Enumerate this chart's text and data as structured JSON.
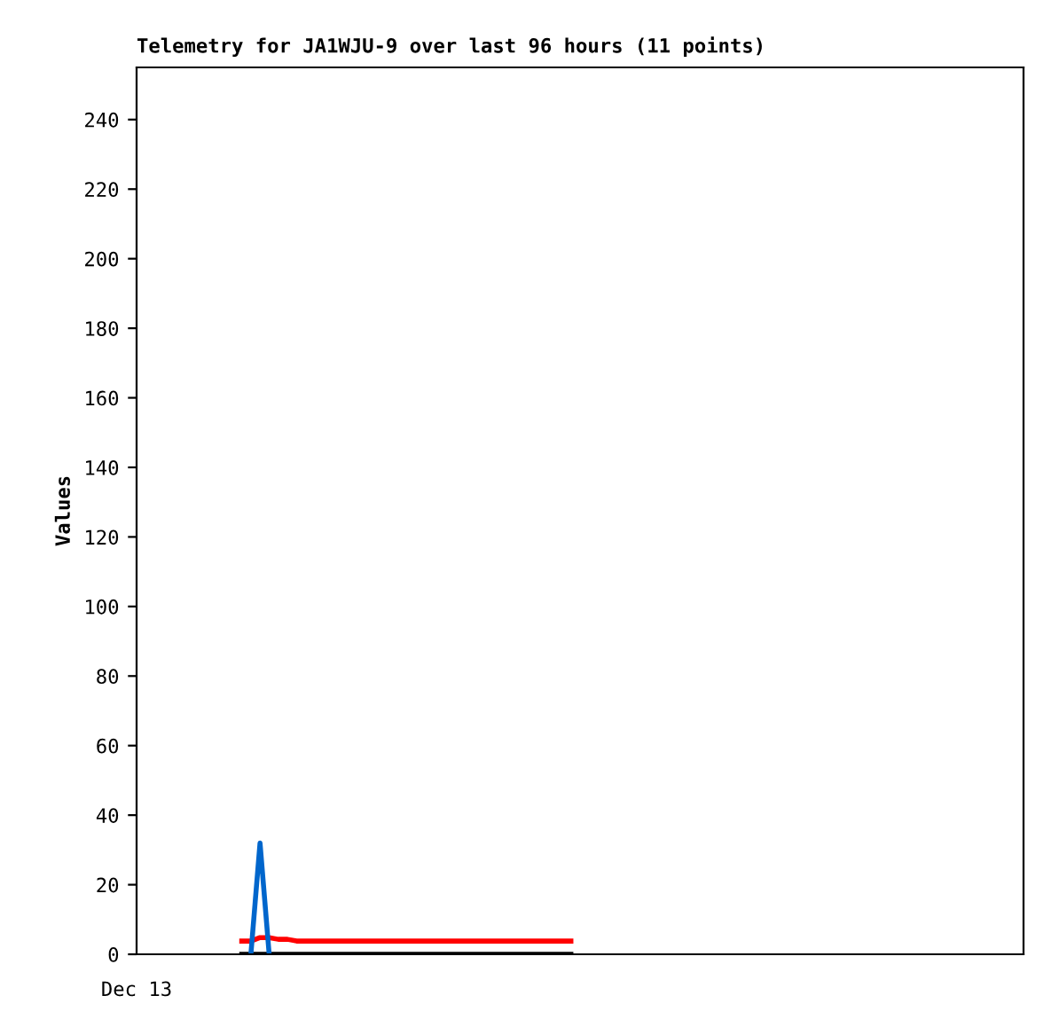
{
  "chart_data": {
    "type": "line",
    "title": "Telemetry for JA1WJU-9 over last 96 hours (11 points)",
    "ylabel": "Values",
    "categories": [
      null,
      null,
      null,
      null,
      null,
      null,
      null,
      null,
      null,
      null,
      null,
      null,
      null,
      null,
      null,
      null,
      null,
      null,
      null,
      null,
      null,
      null,
      null,
      null,
      null,
      null,
      null,
      null,
      null,
      null,
      null,
      null,
      null,
      null,
      null,
      null,
      null,
      null,
      null,
      null,
      null,
      null,
      null,
      null,
      null,
      null,
      null,
      null,
      null,
      null,
      null,
      null,
      null,
      null,
      null,
      null,
      null,
      null,
      null,
      null,
      null,
      null,
      null,
      null,
      null,
      null,
      null,
      null,
      null,
      null,
      null,
      null,
      null,
      null,
      null,
      null,
      null,
      null,
      null,
      null,
      null,
      null,
      null,
      null,
      null,
      null,
      null,
      null,
      null,
      null,
      null,
      null,
      null,
      null,
      null,
      null,
      null
    ],
    "series": [
      {
        "color": "#000000",
        "values": [
          null,
          null,
          null,
          null,
          null,
          null,
          null,
          null,
          null,
          null,
          null,
          0,
          0,
          0,
          0,
          0,
          0,
          0,
          0,
          0,
          0,
          0,
          0,
          0,
          0,
          0,
          0,
          0,
          0,
          0,
          0,
          0,
          0,
          0,
          0,
          0,
          0,
          0,
          0,
          0,
          0,
          0,
          0,
          0,
          0,
          0,
          0,
          0,
          null,
          null,
          null,
          null,
          null,
          null,
          null,
          null,
          null,
          null,
          null,
          null,
          null,
          null,
          null,
          null,
          null,
          null,
          null,
          null,
          null,
          null,
          null,
          null,
          null,
          null,
          null,
          null,
          null,
          null,
          null,
          null,
          null,
          null,
          null,
          null,
          null,
          null,
          null,
          null,
          null,
          null,
          null,
          null,
          null,
          null,
          null,
          null,
          null
        ]
      },
      {
        "color": "#ff0000",
        "values": [
          null,
          null,
          null,
          null,
          null,
          null,
          null,
          null,
          null,
          null,
          null,
          3.8,
          3.8,
          4.8,
          4.8,
          4.3,
          4.3,
          3.8,
          3.8,
          3.8,
          3.8,
          3.8,
          3.8,
          3.8,
          3.8,
          3.8,
          3.8,
          3.8,
          3.8,
          3.8,
          3.8,
          3.8,
          3.8,
          3.8,
          3.8,
          3.8,
          3.8,
          3.8,
          3.8,
          3.8,
          3.8,
          3.8,
          3.8,
          3.8,
          3.8,
          3.8,
          3.8,
          3.8,
          null,
          null,
          null,
          null,
          null,
          null,
          null,
          null,
          null,
          null,
          null,
          null,
          null,
          null,
          null,
          null,
          null,
          null,
          null,
          null,
          null,
          null,
          null,
          null,
          null,
          null,
          null,
          null,
          null,
          null,
          null,
          null,
          null,
          null,
          null,
          null,
          null,
          null,
          null,
          null,
          null,
          null,
          null,
          null,
          null,
          null,
          null,
          null,
          null
        ]
      },
      {
        "color": "#0066cc",
        "values": [
          null,
          null,
          null,
          null,
          null,
          null,
          null,
          null,
          null,
          null,
          null,
          null,
          0,
          32,
          0,
          null,
          null,
          null,
          null,
          null,
          null,
          null,
          null,
          null,
          null,
          null,
          null,
          null,
          null,
          null,
          null,
          null,
          null,
          null,
          null,
          null,
          null,
          null,
          null,
          null,
          null,
          null,
          null,
          null,
          null,
          null,
          null,
          null,
          null,
          null,
          null,
          null,
          null,
          null,
          null,
          null,
          null,
          null,
          null,
          null,
          null,
          null,
          null,
          null,
          null,
          null,
          null,
          null,
          null,
          null,
          null,
          null,
          null,
          null,
          null,
          null,
          null,
          null,
          null,
          null,
          null,
          null,
          null,
          null,
          null,
          null,
          null,
          null,
          null,
          null,
          null,
          null,
          null,
          null,
          null,
          null,
          null
        ]
      }
    ],
    "annotations": [
      "Dec 13"
    ],
    "ylim": [
      0,
      255
    ],
    "yticks": [
      0,
      20,
      40,
      60,
      80,
      100,
      120,
      140,
      160,
      180,
      200,
      220,
      240
    ],
    "tick_labels": "y",
    "grid": false,
    "legend": false,
    "marker": "none",
    "line_style": "solid"
  }
}
